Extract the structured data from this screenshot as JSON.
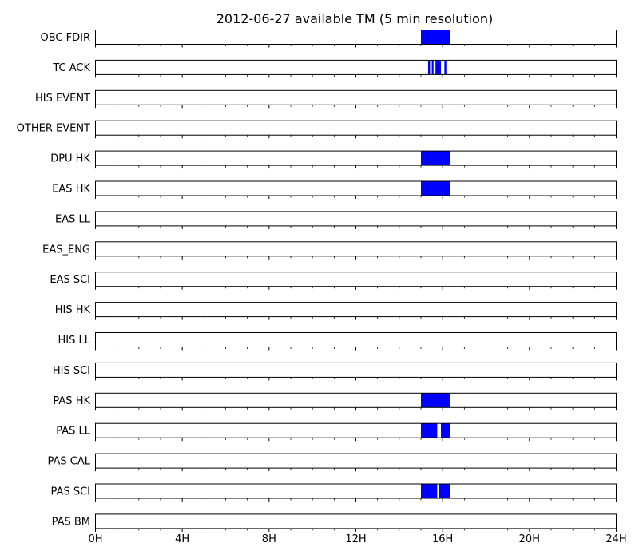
{
  "chart_data": {
    "type": "timeline",
    "title": "2012-06-27 available TM (5 min resolution)",
    "x_unit": "hours",
    "xlim": [
      0,
      24
    ],
    "x_ticks": [
      {
        "value": 0,
        "label": "0H"
      },
      {
        "value": 4,
        "label": "4H"
      },
      {
        "value": 8,
        "label": "8H"
      },
      {
        "value": 12,
        "label": "12H"
      },
      {
        "value": 16,
        "label": "16H"
      },
      {
        "value": 20,
        "label": "20H"
      },
      {
        "value": 24,
        "label": "24H"
      }
    ],
    "minor_tick_step_hours": 1,
    "bar_color": "#0000ff",
    "series": [
      {
        "name": "OBC FDIR",
        "intervals": [
          [
            15.0,
            16.33
          ]
        ]
      },
      {
        "name": "TC ACK",
        "intervals": [
          [
            15.33,
            15.42
          ],
          [
            15.5,
            15.58
          ],
          [
            15.67,
            15.92
          ],
          [
            16.08,
            16.17
          ]
        ]
      },
      {
        "name": "HIS EVENT",
        "intervals": []
      },
      {
        "name": "OTHER EVENT",
        "intervals": []
      },
      {
        "name": "DPU HK",
        "intervals": [
          [
            15.0,
            16.33
          ]
        ]
      },
      {
        "name": "EAS HK",
        "intervals": [
          [
            15.0,
            16.33
          ]
        ]
      },
      {
        "name": "EAS LL",
        "intervals": []
      },
      {
        "name": "EAS_ENG",
        "intervals": []
      },
      {
        "name": "EAS SCI",
        "intervals": []
      },
      {
        "name": "HIS HK",
        "intervals": []
      },
      {
        "name": "HIS LL",
        "intervals": []
      },
      {
        "name": "HIS SCI",
        "intervals": []
      },
      {
        "name": "PAS HK",
        "intervals": [
          [
            15.0,
            16.33
          ]
        ]
      },
      {
        "name": "PAS LL",
        "intervals": [
          [
            15.0,
            15.75
          ],
          [
            15.92,
            16.33
          ]
        ]
      },
      {
        "name": "PAS CAL",
        "intervals": []
      },
      {
        "name": "PAS SCI",
        "intervals": [
          [
            15.0,
            15.75
          ],
          [
            15.83,
            16.33
          ]
        ]
      },
      {
        "name": "PAS BM",
        "intervals": []
      }
    ]
  }
}
